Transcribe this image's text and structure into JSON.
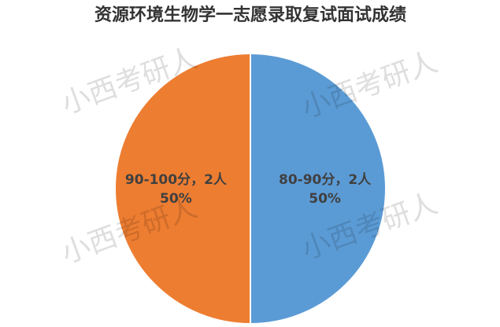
{
  "chart_data": {
    "type": "pie",
    "title": "资源环境生物学一志愿录取复试面试成绩",
    "categories": [
      "80-90分",
      "90-100分"
    ],
    "values": [
      50,
      50
    ],
    "value_labels": [
      "50%",
      "50%"
    ],
    "counts": [
      2,
      2
    ],
    "count_labels": [
      "2人",
      "2人"
    ],
    "label_separator": "，",
    "colors": [
      "#5b9bd5",
      "#ed7d31"
    ],
    "start_angle": 0,
    "direction": "clockwise"
  },
  "watermarks": [
    "小西考研人",
    "小西考研人",
    "小西考研人",
    "小西考研人"
  ]
}
